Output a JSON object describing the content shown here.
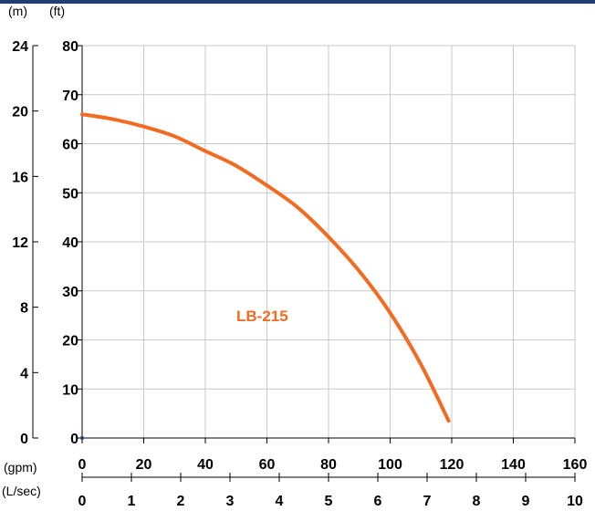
{
  "colors": {
    "top_bar": "#1f3f73",
    "grid": "#c9c9c9",
    "axis": "#000000",
    "series": "#f26b21",
    "origin_dot": "#1f3f73"
  },
  "chart_data": {
    "type": "line",
    "units": {
      "m": "(m)",
      "ft": "(ft)",
      "gpm": "(gpm)",
      "lsec": "(L/sec)"
    },
    "axes": {
      "ft": {
        "min": 0,
        "max": 80,
        "ticks": [
          0,
          10,
          20,
          30,
          40,
          50,
          60,
          70,
          80
        ]
      },
      "m": {
        "min": 0,
        "max": 24,
        "ticks": [
          0,
          4,
          8,
          12,
          16,
          20,
          24
        ]
      },
      "gpm": {
        "min": 0,
        "max": 160,
        "ticks": [
          0,
          20,
          40,
          60,
          80,
          100,
          120,
          140,
          160
        ]
      },
      "lsec": {
        "min": 0,
        "max": 10,
        "ticks": [
          0,
          1,
          2,
          3,
          4,
          5,
          6,
          7,
          8,
          9,
          10
        ]
      }
    },
    "grid": true,
    "series": [
      {
        "name": "LB-215",
        "x": [
          0,
          10,
          20,
          30,
          40,
          50,
          60,
          70,
          80,
          90,
          100,
          110,
          119
        ],
        "y": [
          66,
          65,
          63.5,
          61.5,
          58.5,
          55.5,
          51.5,
          47,
          41,
          34,
          25.5,
          15,
          3.5
        ]
      }
    ]
  }
}
